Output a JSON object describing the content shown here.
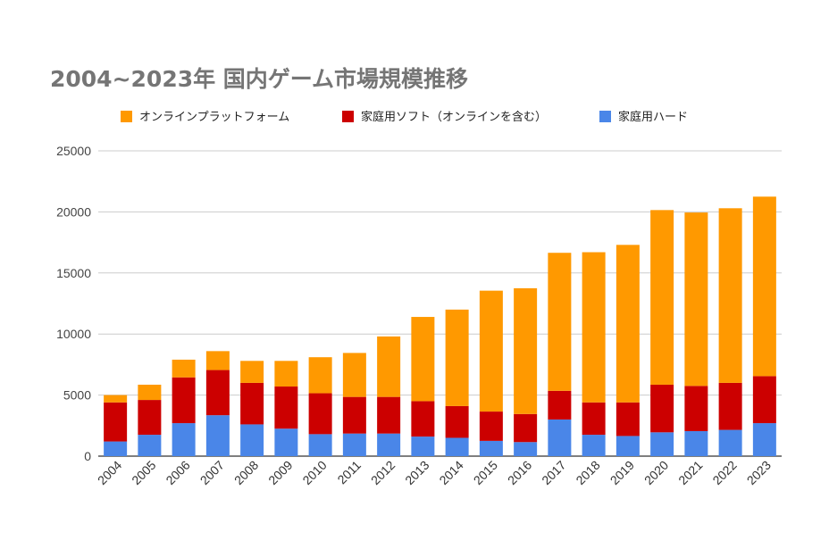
{
  "colors": {
    "online": "#ff9900",
    "software": "#cc0000",
    "hardware": "#4a86e8",
    "grid": "#cccccc",
    "title": "#757575"
  },
  "chart_data": {
    "type": "bar",
    "stacked": true,
    "title": "2004~2023年 国内ゲーム市場規模推移",
    "xlabel": "",
    "ylabel": "",
    "ylim": [
      0,
      25000
    ],
    "yticks": [
      "0",
      "5000",
      "10000",
      "15000",
      "20000",
      "25000"
    ],
    "grid": true,
    "legend_position": "top",
    "categories": [
      "2004",
      "2005",
      "2006",
      "2007",
      "2008",
      "2009",
      "2010",
      "2011",
      "2012",
      "2013",
      "2014",
      "2015",
      "2016",
      "2017",
      "2018",
      "2019",
      "2020",
      "2021",
      "2022",
      "2023"
    ],
    "series": [
      {
        "name": "家庭用ハード",
        "key": "hardware",
        "values": [
          1200,
          1750,
          2700,
          3350,
          2600,
          2250,
          1800,
          1850,
          1850,
          1600,
          1500,
          1250,
          1150,
          3000,
          1750,
          1650,
          1950,
          2050,
          2150,
          2700
        ]
      },
      {
        "name": "家庭用ソフト（オンラインを含む）",
        "key": "software",
        "values": [
          3200,
          2850,
          3750,
          3700,
          3400,
          3450,
          3350,
          3000,
          3000,
          2900,
          2600,
          2400,
          2300,
          2350,
          2650,
          2750,
          3900,
          3700,
          3850,
          3850
        ]
      },
      {
        "name": "オンラインプラットフォーム",
        "key": "online",
        "values": [
          600,
          1250,
          1450,
          1550,
          1800,
          2100,
          2950,
          3600,
          4950,
          6900,
          7900,
          9900,
          10300,
          11300,
          12300,
          12900,
          14300,
          14200,
          14300,
          14700
        ]
      }
    ],
    "legend_order": [
      "online",
      "software",
      "hardware"
    ]
  }
}
